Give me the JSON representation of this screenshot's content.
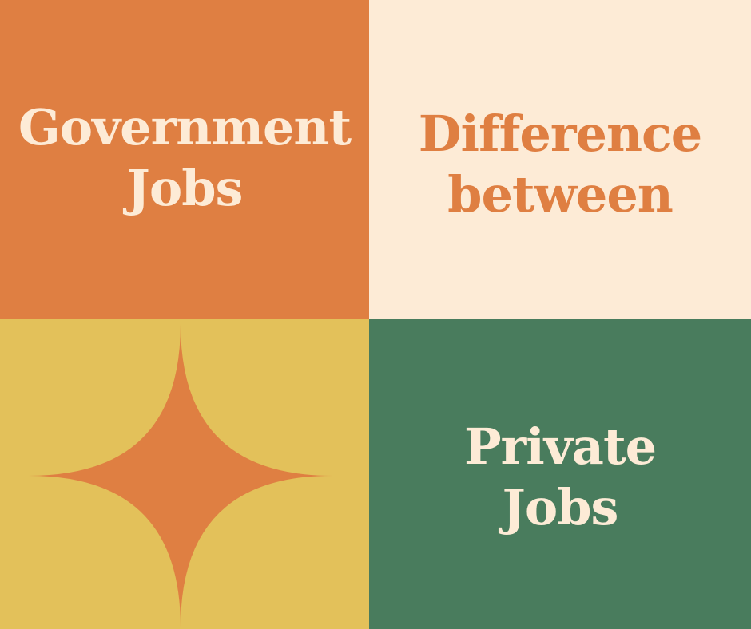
{
  "colors": {
    "orange": "#df7f42",
    "cream": "#fdebd6",
    "mustard": "#e3c15a",
    "green": "#497c5d"
  },
  "top_left": {
    "lines": [
      "Government",
      "Jobs"
    ]
  },
  "top_right": {
    "lines": [
      "Difference",
      "between"
    ]
  },
  "bottom_left": {
    "shape": "four-point-star"
  },
  "bottom_right": {
    "lines": [
      "Private",
      "Jobs"
    ]
  }
}
